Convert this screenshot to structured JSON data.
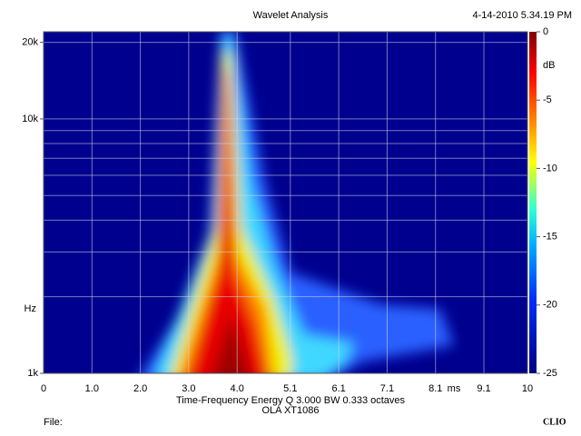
{
  "chart_data": {
    "type": "heatmap",
    "title": "Wavelet Analysis",
    "timestamp": "4-14-2010 5.34.19 PM",
    "xlabel": "Time-Frequency Energy  Q 3.000 BW 0.333 octaves",
    "subtitle": "OLA XT1086",
    "x_unit": "ms",
    "y_unit": "Hz",
    "colorbar_unit": "dB",
    "xlim": [
      0,
      10
    ],
    "xticks": [
      0,
      {
        "value": 1,
        "label": "1.0"
      },
      {
        "value": 2,
        "label": "2.0"
      },
      {
        "value": 3,
        "label": "3.0"
      },
      {
        "value": 4,
        "label": "4.0"
      },
      5.1,
      6.1,
      7.1,
      8.1,
      9.1,
      10
    ],
    "ylim": [
      1000,
      22000
    ],
    "log_y": true,
    "yticks": [
      {
        "value": 1000,
        "label": "1k"
      },
      {
        "value": 10000,
        "label": "10k"
      },
      {
        "value": 20000,
        "label": "20k"
      }
    ],
    "y_minor_grid": [
      2000,
      3000,
      4000,
      5000,
      6000,
      7000,
      8000,
      9000
    ],
    "clim": [
      -25,
      0
    ],
    "cticks": [
      0,
      -5,
      -10,
      -15,
      -20,
      -25
    ],
    "grid": true,
    "footer_left": "File:",
    "footer_right": "CLIO"
  }
}
